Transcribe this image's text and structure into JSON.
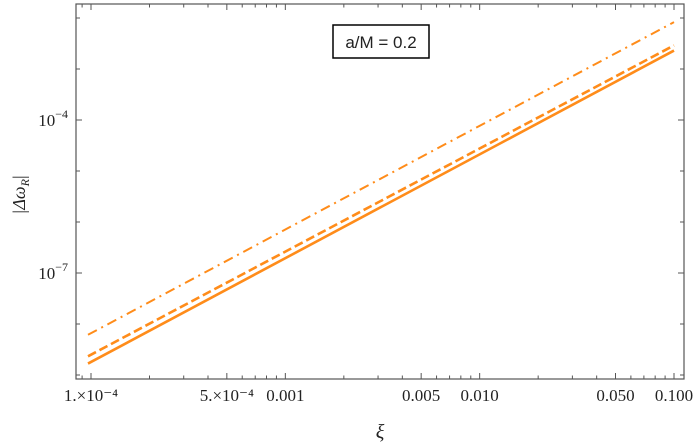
{
  "chart_data": {
    "type": "line",
    "title": "",
    "annotation": "a/M = 0.2",
    "xlabel": "ξ",
    "ylabel": "|Δω_R|",
    "xscale": "log",
    "yscale": "log",
    "xlim": [
      9.2e-05,
      0.115
    ],
    "ylim": [
      1e-09,
      0.02
    ],
    "x_ticks": [
      {
        "value": 0.0001,
        "label": "1.×10⁻⁴"
      },
      {
        "value": 0.0005,
        "label": "5.×10⁻⁴"
      },
      {
        "value": 0.001,
        "label": "0.001"
      },
      {
        "value": 0.005,
        "label": "0.005"
      },
      {
        "value": 0.01,
        "label": "0.010"
      },
      {
        "value": 0.05,
        "label": "0.050"
      },
      {
        "value": 0.1,
        "label": "0.100"
      }
    ],
    "y_ticks": [
      {
        "value": 0.0001,
        "label": "10⁻⁴"
      },
      {
        "value": 1e-07,
        "label": "10⁻⁷"
      }
    ],
    "grid": false,
    "legend": "none",
    "color": "#FF8C1A",
    "series": [
      {
        "name": "solid",
        "style": "solid",
        "x": [
          0.0001,
          0.1
        ],
        "y": [
          1.8e-09,
          0.0023
        ]
      },
      {
        "name": "dashed",
        "style": "dashed",
        "x": [
          0.0001,
          0.1
        ],
        "y": [
          2.5e-09,
          0.0029
        ]
      },
      {
        "name": "dotdashed",
        "style": "dotdash",
        "x": [
          0.0001,
          0.1
        ],
        "y": [
          6.6e-09,
          0.0083
        ]
      }
    ]
  },
  "labels": {
    "annotation": "a/M = 0.2",
    "xlabel": "ξ",
    "ylabel_main": "|Δω",
    "ylabel_sub": "R",
    "ylabel_end": "|"
  }
}
